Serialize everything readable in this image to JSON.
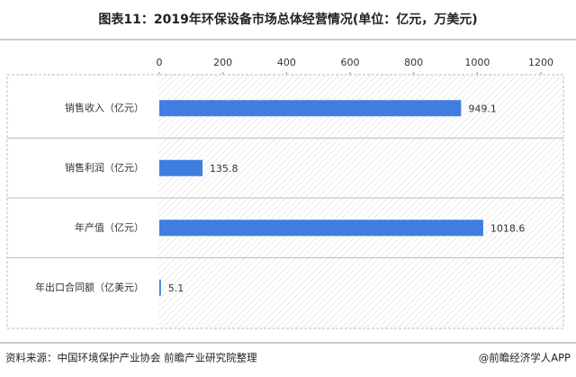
{
  "chart_data": {
    "type": "bar",
    "orientation": "horizontal",
    "title": "图表11：2019年环保设备市场总体经营情况(单位：亿元，万美元)",
    "categories": [
      "销售收入（亿元）",
      "销售利润（亿元）",
      "年产值（亿元）",
      "年出口合同额（亿美元）"
    ],
    "values": [
      949.1,
      135.8,
      1018.6,
      5.1
    ],
    "color": "#3f7ee0",
    "xlim": [
      0,
      1200
    ],
    "xticks": [
      0,
      200,
      400,
      600,
      800,
      1000,
      1200
    ],
    "source": "资料来源：中国环境保护产业协会 前瞻产业研究院整理",
    "credit": "@前瞻经济学人APP"
  }
}
